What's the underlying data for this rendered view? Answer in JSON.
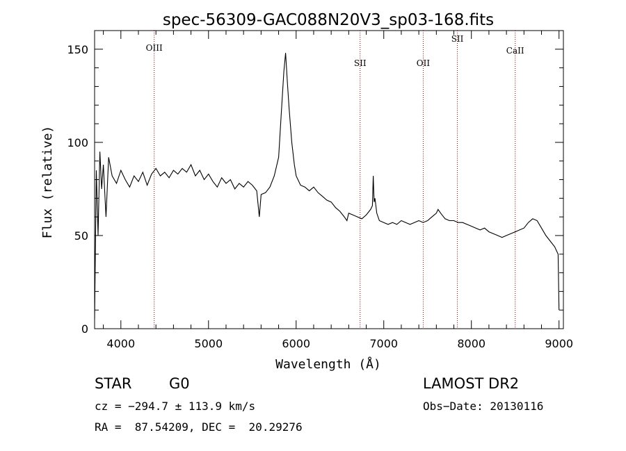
{
  "chart_data": {
    "type": "line",
    "title": "spec-56309-GAC088N20V3_sp03-168.fits",
    "xlabel": "Wavelength (Å)",
    "ylabel": "Flux (relative)",
    "xlim": [
      3700,
      9050
    ],
    "ylim": [
      0,
      160
    ],
    "xticks": [
      4000,
      5000,
      6000,
      7000,
      8000,
      9000
    ],
    "yticks": [
      0,
      50,
      100,
      150
    ],
    "grid": false,
    "series": [
      {
        "x": [
          3700,
          3720,
          3740,
          3760,
          3780,
          3800,
          3830,
          3860,
          3900,
          3950,
          4000,
          4050,
          4100,
          4150,
          4200,
          4250,
          4300,
          4350,
          4400,
          4450,
          4500,
          4550,
          4600,
          4650,
          4700,
          4750,
          4800,
          4850,
          4900,
          4950,
          5000,
          5050,
          5100,
          5150,
          5200,
          5250,
          5300,
          5350,
          5400,
          5450,
          5500,
          5550,
          5580,
          5600,
          5650,
          5700,
          5750,
          5800,
          5830,
          5860,
          5880,
          5900,
          5920,
          5950,
          5980,
          6000,
          6050,
          6100,
          6150,
          6200,
          6250,
          6300,
          6350,
          6400,
          6450,
          6500,
          6550,
          6580,
          6600,
          6650,
          6700,
          6750,
          6800,
          6850,
          6870,
          6880,
          6890,
          6900,
          6920,
          6950,
          7000,
          7050,
          7100,
          7150,
          7200,
          7250,
          7300,
          7350,
          7400,
          7450,
          7500,
          7550,
          7600,
          7620,
          7650,
          7700,
          7750,
          7800,
          7850,
          7900,
          7950,
          8000,
          8050,
          8100,
          8150,
          8200,
          8250,
          8300,
          8350,
          8400,
          8450,
          8500,
          8550,
          8600,
          8650,
          8700,
          8750,
          8800,
          8850,
          8900,
          8950,
          8970,
          8990,
          9000
        ],
        "y": [
          5,
          85,
          50,
          95,
          75,
          88,
          60,
          92,
          82,
          78,
          85,
          80,
          76,
          82,
          79,
          84,
          77,
          83,
          86,
          82,
          84,
          81,
          85,
          83,
          86,
          84,
          88,
          82,
          85,
          80,
          83,
          79,
          76,
          81,
          78,
          80,
          75,
          78,
          76,
          79,
          77,
          74,
          60,
          72,
          73,
          76,
          82,
          92,
          115,
          138,
          148,
          132,
          118,
          100,
          88,
          82,
          77,
          76,
          74,
          76,
          73,
          71,
          69,
          68,
          65,
          63,
          60,
          58,
          62,
          61,
          60,
          59,
          61,
          64,
          66,
          82,
          68,
          70,
          62,
          58,
          57,
          56,
          57,
          56,
          58,
          57,
          56,
          57,
          58,
          57,
          58,
          60,
          62,
          64,
          62,
          59,
          58,
          58,
          57,
          57,
          56,
          55,
          54,
          53,
          54,
          52,
          51,
          50,
          49,
          50,
          51,
          52,
          53,
          54,
          57,
          59,
          58,
          54,
          50,
          47,
          44,
          42,
          40,
          10
        ]
      }
    ],
    "lines": [
      {
        "label": "OIII",
        "x": 4380
      },
      {
        "label": "SII",
        "x": 6730
      },
      {
        "label": "OII",
        "x": 7450
      },
      {
        "label": "SII",
        "x": 7840
      },
      {
        "label": "CaII",
        "x": 8500
      }
    ],
    "annotations": {
      "class_label": "STAR",
      "subclass": "G0",
      "survey": "LAMOST DR2",
      "cz": "cz = −294.7 ± 113.9 km/s",
      "obs_date": "Obs−Date: 20130116",
      "radec": "RA =  87.54209, DEC =  20.29276"
    }
  }
}
